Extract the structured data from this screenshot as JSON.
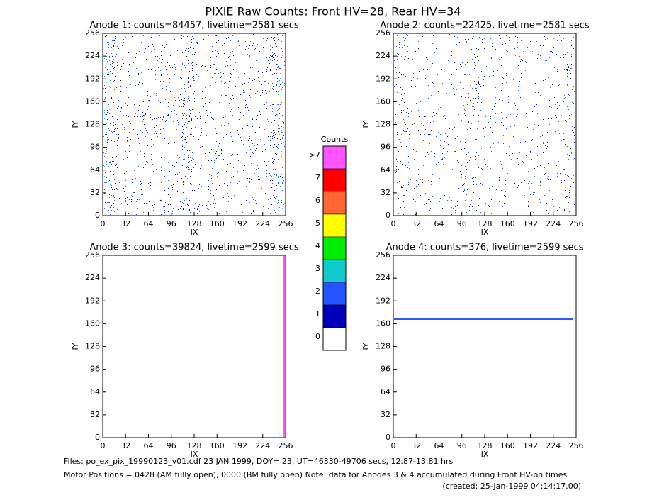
{
  "title": "PIXIE Raw Counts:  Front HV=28, Rear HV=34",
  "chart_data": [
    {
      "type": "heatmap",
      "title": "Anode 1: counts=84457, livetime=2581 secs",
      "xlabel": "IX",
      "ylabel": "IY",
      "xlim": [
        0,
        256
      ],
      "ylim": [
        0,
        256
      ],
      "xticks": [
        0,
        32,
        64,
        96,
        128,
        160,
        192,
        224,
        256
      ],
      "yticks": [
        0,
        32,
        64,
        96,
        128,
        160,
        192,
        224,
        256
      ]
    },
    {
      "type": "heatmap",
      "title": "Anode 2: counts=22425, livetime=2581 secs",
      "xlabel": "IX",
      "ylabel": "IY",
      "xlim": [
        0,
        256
      ],
      "ylim": [
        0,
        256
      ],
      "xticks": [
        0,
        32,
        64,
        96,
        128,
        160,
        192,
        224,
        256
      ],
      "yticks": [
        0,
        32,
        64,
        96,
        128,
        160,
        192,
        224,
        256
      ]
    },
    {
      "type": "heatmap",
      "title": "Anode 3: counts=39824, livetime=2599 secs",
      "xlabel": "IX",
      "ylabel": "IY",
      "xlim": [
        0,
        256
      ],
      "ylim": [
        0,
        256
      ],
      "xticks": [
        0,
        32,
        64,
        96,
        128,
        160,
        192,
        224,
        256
      ],
      "yticks": [
        0,
        32,
        64,
        96,
        128,
        160,
        192,
        224,
        256
      ]
    },
    {
      "type": "heatmap",
      "title": "Anode 4: counts=376, livetime=2599 secs",
      "xlabel": "IX",
      "ylabel": "IY",
      "xlim": [
        0,
        256
      ],
      "ylim": [
        0,
        256
      ],
      "xticks": [
        0,
        32,
        64,
        96,
        128,
        160,
        192,
        224,
        256
      ],
      "yticks": [
        0,
        32,
        64,
        96,
        128,
        160,
        192,
        224,
        256
      ]
    }
  ],
  "colorbar": {
    "title": "Counts",
    "levels": [
      {
        "label": ">7",
        "color": "#ff55ff"
      },
      {
        "label": "7",
        "color": "#ff0000"
      },
      {
        "label": "6",
        "color": "#ff6633"
      },
      {
        "label": "5",
        "color": "#ffff00"
      },
      {
        "label": "4",
        "color": "#00ee00"
      },
      {
        "label": "3",
        "color": "#11cccc"
      },
      {
        "label": "2",
        "color": "#2255ff"
      },
      {
        "label": "1",
        "color": "#0000bb"
      },
      {
        "label": "0",
        "color": "#ffffff"
      }
    ]
  },
  "footer": [
    "Files: po_ex_pix_19990123_v01.cdf    23 JAN 1999, DOY= 23, UT=46330-49706 secs, 12.87-13.81 hrs",
    "Motor Positions = 0428 (AM fully open), 0000 (BM fully open)    Note: data for Anodes 3 & 4 accumulated during Front HV-on times",
    "(created: 25-Jan-1999 04:14:17.00)"
  ]
}
